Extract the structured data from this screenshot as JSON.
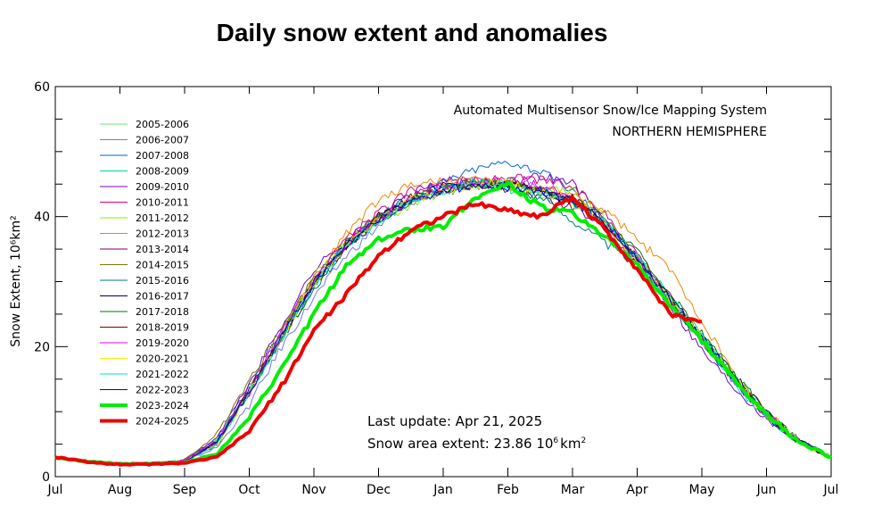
{
  "chart_data": {
    "type": "line",
    "title": "Daily snow extent and anomalies",
    "xlabel": "",
    "ylabel": "Snow Extent, 10⁶km²",
    "ylim": [
      0,
      60
    ],
    "yticks": [
      0,
      20,
      40,
      60
    ],
    "ytick_labels": [
      "0",
      "20",
      "40",
      "60"
    ],
    "xticks": [
      "Jul",
      "Aug",
      "Sep",
      "Oct",
      "Nov",
      "Dec",
      "Jan",
      "Feb",
      "Mar",
      "Apr",
      "May",
      "Jun",
      "Jul"
    ],
    "legend_position": "top-left",
    "grid": false,
    "annotations": {
      "system": "Automated  Multisensor Snow/Ice Mapping System",
      "region": "NORTHERN HEMISPHERE",
      "last_update": "Last update: Apr 21, 2025",
      "area_extent_prefix": "Snow area extent: 23.86 10",
      "area_extent_sup1": "6",
      "area_extent_unit": "km",
      "area_extent_sup2": "2"
    },
    "x_month_index": [
      0,
      0.5,
      1,
      1.5,
      2,
      2.5,
      3,
      3.5,
      4,
      4.5,
      5,
      5.5,
      6,
      6.5,
      7,
      7.5,
      8,
      8.5,
      9,
      9.5,
      10,
      10.5,
      11,
      11.5,
      12
    ],
    "envelope_mean": [
      3.0,
      2.3,
      2.0,
      2.1,
      2.3,
      5.0,
      12.5,
      21.0,
      29.0,
      35.0,
      39.0,
      42.0,
      43.5,
      44.5,
      44.5,
      43.5,
      42.0,
      38.5,
      33.0,
      27.0,
      21.0,
      15.0,
      9.5,
      5.5,
      3.0
    ],
    "series": [
      {
        "name": "2005-2006",
        "color": "#66ee66",
        "width": 1,
        "offsets": [
          0,
          0,
          0,
          0,
          0.3,
          0.5,
          0.8,
          0.5,
          0.7,
          1.0,
          0.5,
          0.8,
          0.2,
          0.6,
          0.4,
          -0.5,
          0.6,
          0.4,
          0.5,
          0.4,
          0.3,
          0.2,
          0,
          0,
          0
        ]
      },
      {
        "name": "2006-2007",
        "color": "#7777ee",
        "width": 1,
        "offsets": [
          0,
          0,
          0,
          0,
          0,
          -0.5,
          -1.5,
          -1.0,
          -1.5,
          -1.0,
          -0.5,
          0.2,
          0.5,
          1.0,
          0.8,
          1.2,
          0.6,
          0.5,
          0.3,
          0.2,
          -0.3,
          -0.3,
          0,
          0,
          0
        ]
      },
      {
        "name": "2007-2008",
        "color": "#0066dd",
        "width": 1,
        "offsets": [
          0,
          0,
          0,
          0,
          0.2,
          0.8,
          1.2,
          1.5,
          0.8,
          0.4,
          0.9,
          1.2,
          1.8,
          2.8,
          4.0,
          3.5,
          2.0,
          1.0,
          0.6,
          0.3,
          0.2,
          0.1,
          0,
          0,
          0
        ]
      },
      {
        "name": "2008-2009",
        "color": "#00dd88",
        "width": 1,
        "offsets": [
          0,
          0,
          0,
          0,
          0,
          0.4,
          0.6,
          0.2,
          0.4,
          0.8,
          1.0,
          0.8,
          1.2,
          0.6,
          -0.3,
          0.5,
          0.4,
          0.7,
          0.6,
          0.8,
          0.5,
          0.4,
          0.3,
          0,
          0
        ]
      },
      {
        "name": "2009-2010",
        "color": "#7700cc",
        "width": 1,
        "offsets": [
          0,
          0,
          0,
          0,
          0.2,
          1.0,
          1.8,
          2.2,
          2.8,
          1.5,
          1.0,
          1.5,
          2.0,
          1.0,
          0.8,
          2.8,
          3.2,
          1.0,
          0.5,
          -0.5,
          -1.5,
          -1.2,
          -0.5,
          0,
          0
        ]
      },
      {
        "name": "2010-2011",
        "color": "#dd0077",
        "width": 1,
        "offsets": [
          0,
          0,
          0,
          0,
          0,
          0.4,
          0.8,
          0.6,
          1.2,
          1.5,
          1.6,
          2.0,
          1.6,
          1.0,
          1.5,
          2.2,
          2.5,
          2.0,
          1.5,
          0.8,
          0.4,
          0.2,
          0,
          0,
          0
        ]
      },
      {
        "name": "2011-2012",
        "color": "#88ee00",
        "width": 1,
        "offsets": [
          0,
          0,
          0,
          0,
          0,
          0.6,
          0.4,
          1.0,
          2.0,
          0.8,
          0.3,
          -0.2,
          0.4,
          0.5,
          0.2,
          0.8,
          1.8,
          1.5,
          0.6,
          0.5,
          0.2,
          0.1,
          0,
          0,
          0
        ]
      },
      {
        "name": "2012-2013",
        "color": "#ee8800",
        "width": 1,
        "offsets": [
          0,
          0,
          0,
          0,
          0,
          0.2,
          0.5,
          0.8,
          1.5,
          2.5,
          3.5,
          3.0,
          2.0,
          1.2,
          0.4,
          0.8,
          1.2,
          2.5,
          3.5,
          5.0,
          3.0,
          0.8,
          0.4,
          0,
          0
        ]
      },
      {
        "name": "2013-2014",
        "color": "#770077",
        "width": 1,
        "offsets": [
          0,
          0,
          0,
          0,
          0,
          0.5,
          0.6,
          1.0,
          0.4,
          0.8,
          0.5,
          0.6,
          0.3,
          0.2,
          -0.2,
          -0.5,
          -0.6,
          0.0,
          0.2,
          0.0,
          0.0,
          -0.3,
          0,
          0,
          0
        ]
      },
      {
        "name": "2014-2015",
        "color": "#777700",
        "width": 1,
        "offsets": [
          0,
          0,
          0,
          0,
          0.3,
          1.5,
          2.0,
          1.8,
          1.5,
          1.2,
          0.8,
          0.6,
          0.8,
          0.2,
          0.6,
          0.2,
          0.5,
          0.4,
          0.2,
          0.0,
          -0.2,
          0.0,
          0,
          0,
          0
        ]
      },
      {
        "name": "2015-2016",
        "color": "#007777",
        "width": 1,
        "offsets": [
          0,
          0,
          0,
          0,
          0,
          -0.2,
          0.4,
          0.3,
          -0.2,
          0.5,
          0.8,
          0.5,
          1.0,
          0.6,
          0.0,
          -0.5,
          -2.5,
          -2.5,
          -0.5,
          0.2,
          0.0,
          -0.2,
          0,
          0,
          0
        ]
      },
      {
        "name": "2016-2017",
        "color": "#000077",
        "width": 1,
        "offsets": [
          0,
          0,
          0,
          0,
          0,
          0.3,
          0.5,
          0.6,
          1.0,
          0.5,
          0.2,
          0.6,
          1.2,
          0.5,
          0.4,
          0.6,
          0.2,
          0.5,
          0.4,
          0.5,
          0.8,
          0.5,
          0.2,
          0,
          0
        ]
      },
      {
        "name": "2017-2018",
        "color": "#007700",
        "width": 1,
        "offsets": [
          0,
          0,
          0,
          0,
          0,
          0.0,
          0.3,
          0.2,
          0.2,
          0.8,
          0.4,
          0.4,
          0.8,
          0.8,
          1.0,
          0.8,
          0.5,
          1.0,
          1.5,
          1.2,
          1.0,
          0.8,
          0.4,
          0,
          0
        ]
      },
      {
        "name": "2018-2019",
        "color": "#770000",
        "width": 1,
        "offsets": [
          0,
          0,
          0,
          0,
          0,
          0.2,
          0.8,
          0.6,
          0.8,
          0.5,
          1.0,
          0.8,
          0.2,
          0.5,
          0.4,
          0.6,
          0.8,
          0.2,
          0.0,
          0.3,
          0.0,
          0.0,
          0,
          0,
          0
        ]
      },
      {
        "name": "2019-2020",
        "color": "#ee00ee",
        "width": 1,
        "offsets": [
          0,
          0,
          0,
          0,
          0.2,
          0.4,
          0.5,
          1.2,
          1.5,
          0.8,
          0.5,
          0.5,
          1.0,
          0.5,
          1.0,
          1.5,
          0.8,
          0.4,
          0.2,
          0.0,
          -0.2,
          -0.2,
          0,
          0,
          0
        ]
      },
      {
        "name": "2020-2021",
        "color": "#eeee00",
        "width": 1,
        "offsets": [
          0,
          0,
          0,
          0,
          0,
          0.0,
          0.2,
          0.5,
          0.8,
          0.4,
          0.5,
          0.6,
          0.2,
          0.4,
          0.8,
          0.4,
          0.0,
          0.2,
          0.0,
          0.2,
          0.3,
          0.2,
          0,
          0,
          0
        ]
      },
      {
        "name": "2021-2022",
        "color": "#00dddd",
        "width": 1,
        "offsets": [
          0,
          0,
          0,
          0,
          0,
          0.0,
          0.3,
          0.2,
          0.4,
          0.6,
          0.2,
          0.5,
          0.3,
          0.8,
          0.5,
          0.2,
          -0.2,
          0.5,
          0.8,
          0.5,
          0.4,
          -0.6,
          -0.6,
          0,
          0
        ]
      },
      {
        "name": "2022-2023",
        "color": "#0000cc",
        "width": 1,
        "offsets": [
          0,
          0,
          0,
          0,
          0,
          0.3,
          0.4,
          0.6,
          0.8,
          0.6,
          0.8,
          0.4,
          0.6,
          0.2,
          0.0,
          0.4,
          0.5,
          0.6,
          0.4,
          0.3,
          0.2,
          0.0,
          0,
          0,
          0
        ]
      },
      {
        "name": "2023-2024",
        "color": "#00ee00",
        "width": 4,
        "values": [
          3.0,
          2.3,
          2.0,
          2.0,
          2.2,
          3.5,
          9.0,
          16.5,
          25.0,
          32.5,
          36.5,
          38.0,
          38.5,
          43.0,
          45.0,
          41.5,
          40.5,
          37.0,
          32.5,
          26.5,
          21.0,
          14.8,
          9.4,
          5.4,
          3.0
        ]
      },
      {
        "name": "2024-2025",
        "color": "#ee0000",
        "width": 4,
        "values": [
          3.0,
          2.2,
          1.9,
          1.9,
          2.1,
          3.0,
          7.0,
          14.0,
          22.5,
          28.0,
          34.0,
          38.0,
          40.0,
          42.0,
          41.0,
          40.0,
          43.0,
          38.0,
          32.0,
          25.0,
          23.86
        ]
      }
    ]
  }
}
